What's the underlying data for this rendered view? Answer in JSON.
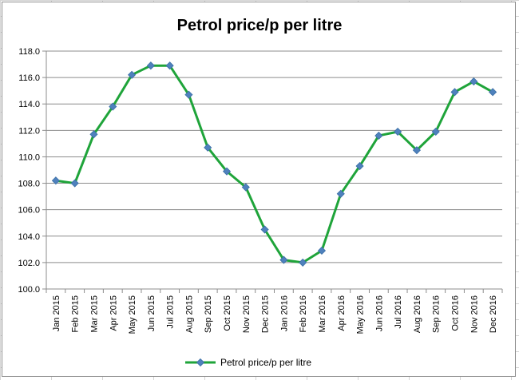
{
  "chart_data": {
    "type": "line",
    "title": "Petrol price/p per litre",
    "xlabel": "",
    "ylabel": "",
    "ylim": [
      100.0,
      118.0
    ],
    "ytick_step": 2.0,
    "ytick_labels": [
      "100.0",
      "102.0",
      "104.0",
      "106.0",
      "108.0",
      "110.0",
      "112.0",
      "114.0",
      "116.0",
      "118.0"
    ],
    "grid": true,
    "legend_position": "bottom",
    "categories": [
      "Jan 2015",
      "Feb 2015",
      "Mar 2015",
      "Apr 2015",
      "May 2015",
      "Jun 2015",
      "Jul 2015",
      "Aug 2015",
      "Sep 2015",
      "Oct 2015",
      "Nov 2015",
      "Dec 2015",
      "Jan 2016",
      "Feb 2016",
      "Mar 2016",
      "Apr 2016",
      "May 2016",
      "Jun 2016",
      "Jul 2016",
      "Aug 2016",
      "Sep 2016",
      "Oct 2016",
      "Nov 2016",
      "Dec 2016"
    ],
    "series": [
      {
        "name": "Petrol price/p per litre",
        "color": "#1fa43a",
        "marker_color": "#4f81bd",
        "values": [
          108.2,
          108.0,
          111.7,
          113.8,
          116.2,
          116.9,
          116.9,
          114.7,
          110.7,
          108.9,
          107.7,
          104.5,
          102.2,
          102.0,
          102.9,
          107.2,
          109.3,
          111.6,
          111.9,
          110.5,
          111.9,
          114.9,
          115.7,
          114.9
        ]
      }
    ]
  }
}
